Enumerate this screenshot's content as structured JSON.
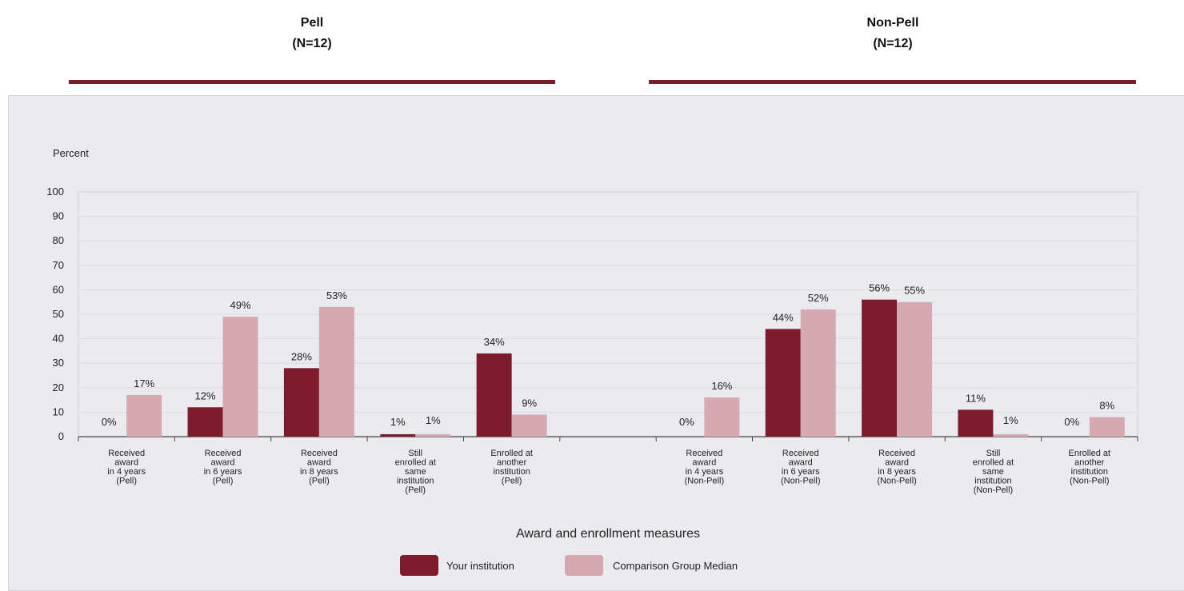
{
  "groups": [
    {
      "title": "Pell",
      "n_label": "(N=12)"
    },
    {
      "title": "Non-Pell",
      "n_label": "(N=12)"
    }
  ],
  "colors": {
    "accent": "#7e1b2c",
    "your_institution": "#7e1b2c",
    "comparison_median": "#d4a9b1",
    "panel_bg": "#ebebef",
    "gridline": "#d6dbe6"
  },
  "chart_data": {
    "type": "bar",
    "ylabel": "Percent",
    "xlabel": "Award and enrollment measures",
    "ylim": [
      0,
      100
    ],
    "yticks": [
      "0",
      "10",
      "20",
      "30",
      "40",
      "50",
      "60",
      "70",
      "80",
      "90",
      "100"
    ],
    "grid": true,
    "legend_position": "bottom-center",
    "categories": [
      [
        "Received",
        "award",
        "in 4 years",
        "(Pell)"
      ],
      [
        "Received",
        "award",
        "in 6 years",
        "(Pell)"
      ],
      [
        "Received",
        "award",
        "in 8 years",
        "(Pell)"
      ],
      [
        "Still",
        "enrolled at",
        "same",
        "institution",
        "(Pell)"
      ],
      [
        "Enrolled at",
        "another",
        "institution",
        "(Pell)"
      ],
      [],
      [
        "Received",
        "award",
        "in 4 years",
        "(Non-Pell)"
      ],
      [
        "Received",
        "award",
        "in 6 years",
        "(Non-Pell)"
      ],
      [
        "Received",
        "award",
        "in 8 years",
        "(Non-Pell)"
      ],
      [
        "Still",
        "enrolled at",
        "same",
        "institution",
        "(Non-Pell)"
      ],
      [
        "Enrolled at",
        "another",
        "institution",
        "(Non-Pell)"
      ]
    ],
    "series": [
      {
        "name": "Your institution",
        "color": "#7e1b2c",
        "values": [
          0,
          12,
          28,
          1,
          34,
          null,
          0,
          44,
          56,
          11,
          0
        ],
        "labels": [
          "0%",
          "12%",
          "28%",
          "1%",
          "34%",
          "",
          "0%",
          "44%",
          "56%",
          "11%",
          "0%"
        ]
      },
      {
        "name": "Comparison Group Median",
        "color": "#d4a9b1",
        "values": [
          17,
          49,
          53,
          1,
          9,
          null,
          16,
          52,
          55,
          1,
          8
        ],
        "labels": [
          "17%",
          "49%",
          "53%",
          "1%",
          "9%",
          "",
          "16%",
          "52%",
          "55%",
          "1%",
          "8%"
        ]
      }
    ]
  }
}
